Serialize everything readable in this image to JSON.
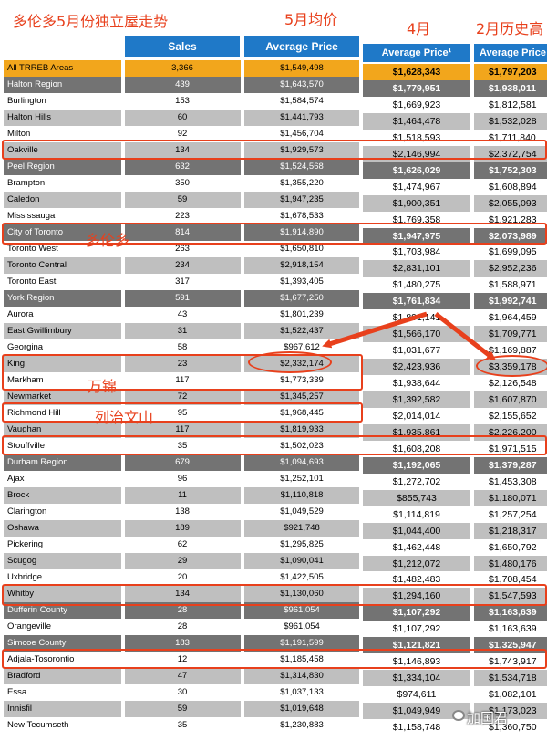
{
  "titles": {
    "main": "多伦多5月份独立屋走势",
    "may": "5月均价",
    "april": "4月",
    "feb": "2月历史高"
  },
  "headers": {
    "sales": "Sales",
    "avg_price": "Average Price",
    "avg_price_april": "Average Price¹",
    "avg_price_feb": "Average Price"
  },
  "notes": {
    "toronto": "多伦多",
    "markham": "万锦",
    "richmond_hill": "列治文山"
  },
  "watermark": "加国君",
  "colors": {
    "accent": "#e8401c",
    "header": "#1f79c8",
    "gold": "#f2a61c",
    "dark": "#737373",
    "light": "#bfbfbf"
  },
  "rows": [
    {
      "area": "All TRREB Areas",
      "sales": "3,366",
      "price": "$1,549,498",
      "april": "$1,628,343",
      "feb": "$1,797,203",
      "style": "gold"
    },
    {
      "area": "Halton Region",
      "sales": "439",
      "price": "$1,643,570",
      "april": "$1,779,951",
      "feb": "$1,938,011",
      "style": "dark"
    },
    {
      "area": "Burlington",
      "sales": "153",
      "price": "$1,584,574",
      "april": "$1,669,923",
      "feb": "$1,812,581",
      "style": "white"
    },
    {
      "area": "Halton Hills",
      "sales": "60",
      "price": "$1,441,793",
      "april": "$1,464,478",
      "feb": "$1,532,028",
      "style": "light"
    },
    {
      "area": "Milton",
      "sales": "92",
      "price": "$1,456,704",
      "april": "$1,518,593",
      "feb": "$1,711,840",
      "style": "white"
    },
    {
      "area": "Oakville",
      "sales": "134",
      "price": "$1,929,573",
      "april": "$2,146,994",
      "feb": "$2,372,754",
      "style": "light"
    },
    {
      "area": "Peel Region",
      "sales": "632",
      "price": "$1,524,568",
      "april": "$1,626,029",
      "feb": "$1,752,303",
      "style": "dark"
    },
    {
      "area": "Brampton",
      "sales": "350",
      "price": "$1,355,220",
      "april": "$1,474,967",
      "feb": "$1,608,894",
      "style": "white"
    },
    {
      "area": "Caledon",
      "sales": "59",
      "price": "$1,947,235",
      "april": "$1,900,351",
      "feb": "$2,055,093",
      "style": "light"
    },
    {
      "area": "Mississauga",
      "sales": "223",
      "price": "$1,678,533",
      "april": "$1,769,358",
      "feb": "$1,921,283",
      "style": "white"
    },
    {
      "area": "City of Toronto",
      "sales": "814",
      "price": "$1,914,890",
      "april": "$1,947,975",
      "feb": "$2,073,989",
      "style": "dark"
    },
    {
      "area": "Toronto West",
      "sales": "263",
      "price": "$1,650,810",
      "april": "$1,703,984",
      "feb": "$1,699,095",
      "style": "white"
    },
    {
      "area": "Toronto Central",
      "sales": "234",
      "price": "$2,918,154",
      "april": "$2,831,101",
      "feb": "$2,952,236",
      "style": "light"
    },
    {
      "area": "Toronto East",
      "sales": "317",
      "price": "$1,393,405",
      "april": "$1,480,275",
      "feb": "$1,588,971",
      "style": "white"
    },
    {
      "area": "York Region",
      "sales": "591",
      "price": "$1,677,250",
      "april": "$1,761,834",
      "feb": "$1,992,741",
      "style": "dark"
    },
    {
      "area": "Aurora",
      "sales": "43",
      "price": "$1,801,239",
      "april": "$1,891,141",
      "feb": "$1,964,459",
      "style": "white"
    },
    {
      "area": "East Gwillimbury",
      "sales": "31",
      "price": "$1,522,437",
      "april": "$1,566,170",
      "feb": "$1,709,771",
      "style": "light"
    },
    {
      "area": "Georgina",
      "sales": "58",
      "price": "$967,612",
      "april": "$1,031,677",
      "feb": "$1,169,887",
      "style": "white"
    },
    {
      "area": "King",
      "sales": "23",
      "price": "$2,332,174",
      "april": "$2,423,936",
      "feb": "$3,359,178",
      "style": "light"
    },
    {
      "area": "Markham",
      "sales": "117",
      "price": "$1,773,339",
      "april": "$1,938,644",
      "feb": "$2,126,548",
      "style": "white"
    },
    {
      "area": "Newmarket",
      "sales": "72",
      "price": "$1,345,257",
      "april": "$1,392,582",
      "feb": "$1,607,870",
      "style": "light"
    },
    {
      "area": "Richmond Hill",
      "sales": "95",
      "price": "$1,968,445",
      "april": "$2,014,014",
      "feb": "$2,155,652",
      "style": "white"
    },
    {
      "area": "Vaughan",
      "sales": "117",
      "price": "$1,819,933",
      "april": "$1,935,861",
      "feb": "$2,226,200",
      "style": "light"
    },
    {
      "area": "Stouffville",
      "sales": "35",
      "price": "$1,502,023",
      "april": "$1,608,208",
      "feb": "$1,971,515",
      "style": "white"
    },
    {
      "area": "Durham Region",
      "sales": "679",
      "price": "$1,094,693",
      "april": "$1,192,065",
      "feb": "$1,379,287",
      "style": "dark"
    },
    {
      "area": "Ajax",
      "sales": "96",
      "price": "$1,252,101",
      "april": "$1,272,702",
      "feb": "$1,453,308",
      "style": "white"
    },
    {
      "area": "Brock",
      "sales": "11",
      "price": "$1,110,818",
      "april": "$855,743",
      "feb": "$1,180,071",
      "style": "light"
    },
    {
      "area": "Clarington",
      "sales": "138",
      "price": "$1,049,529",
      "april": "$1,114,819",
      "feb": "$1,257,254",
      "style": "white"
    },
    {
      "area": "Oshawa",
      "sales": "189",
      "price": "$921,748",
      "april": "$1,044,400",
      "feb": "$1,218,317",
      "style": "light"
    },
    {
      "area": "Pickering",
      "sales": "62",
      "price": "$1,295,825",
      "april": "$1,462,448",
      "feb": "$1,650,792",
      "style": "white"
    },
    {
      "area": "Scugog",
      "sales": "29",
      "price": "$1,090,041",
      "april": "$1,212,072",
      "feb": "$1,480,176",
      "style": "light"
    },
    {
      "area": "Uxbridge",
      "sales": "20",
      "price": "$1,422,505",
      "april": "$1,482,483",
      "feb": "$1,708,454",
      "style": "white"
    },
    {
      "area": "Whitby",
      "sales": "134",
      "price": "$1,130,060",
      "april": "$1,294,160",
      "feb": "$1,547,593",
      "style": "light"
    },
    {
      "area": "Dufferin County",
      "sales": "28",
      "price": "$961,054",
      "april": "$1,107,292",
      "feb": "$1,163,639",
      "style": "dark"
    },
    {
      "area": "Orangeville",
      "sales": "28",
      "price": "$961,054",
      "april": "$1,107,292",
      "feb": "$1,163,639",
      "style": "white"
    },
    {
      "area": "Simcoe County",
      "sales": "183",
      "price": "$1,191,599",
      "april": "$1,121,821",
      "feb": "$1,325,947",
      "style": "dark"
    },
    {
      "area": "Adjala-Tosorontio",
      "sales": "12",
      "price": "$1,185,458",
      "april": "$1,146,893",
      "feb": "$1,743,917",
      "style": "white"
    },
    {
      "area": "Bradford",
      "sales": "47",
      "price": "$1,314,830",
      "april": "$1,334,104",
      "feb": "$1,534,718",
      "style": "light"
    },
    {
      "area": "Essa",
      "sales": "30",
      "price": "$1,037,133",
      "april": "$974,611",
      "feb": "$1,082,101",
      "style": "white"
    },
    {
      "area": "Innisfil",
      "sales": "59",
      "price": "$1,019,648",
      "april": "$1,049,949",
      "feb": "$1,173,023",
      "style": "light"
    },
    {
      "area": "New Tecumseth",
      "sales": "35",
      "price": "$1,230,883",
      "april": "$1,158,748",
      "feb": "$1,360,750",
      "style": "white"
    }
  ]
}
